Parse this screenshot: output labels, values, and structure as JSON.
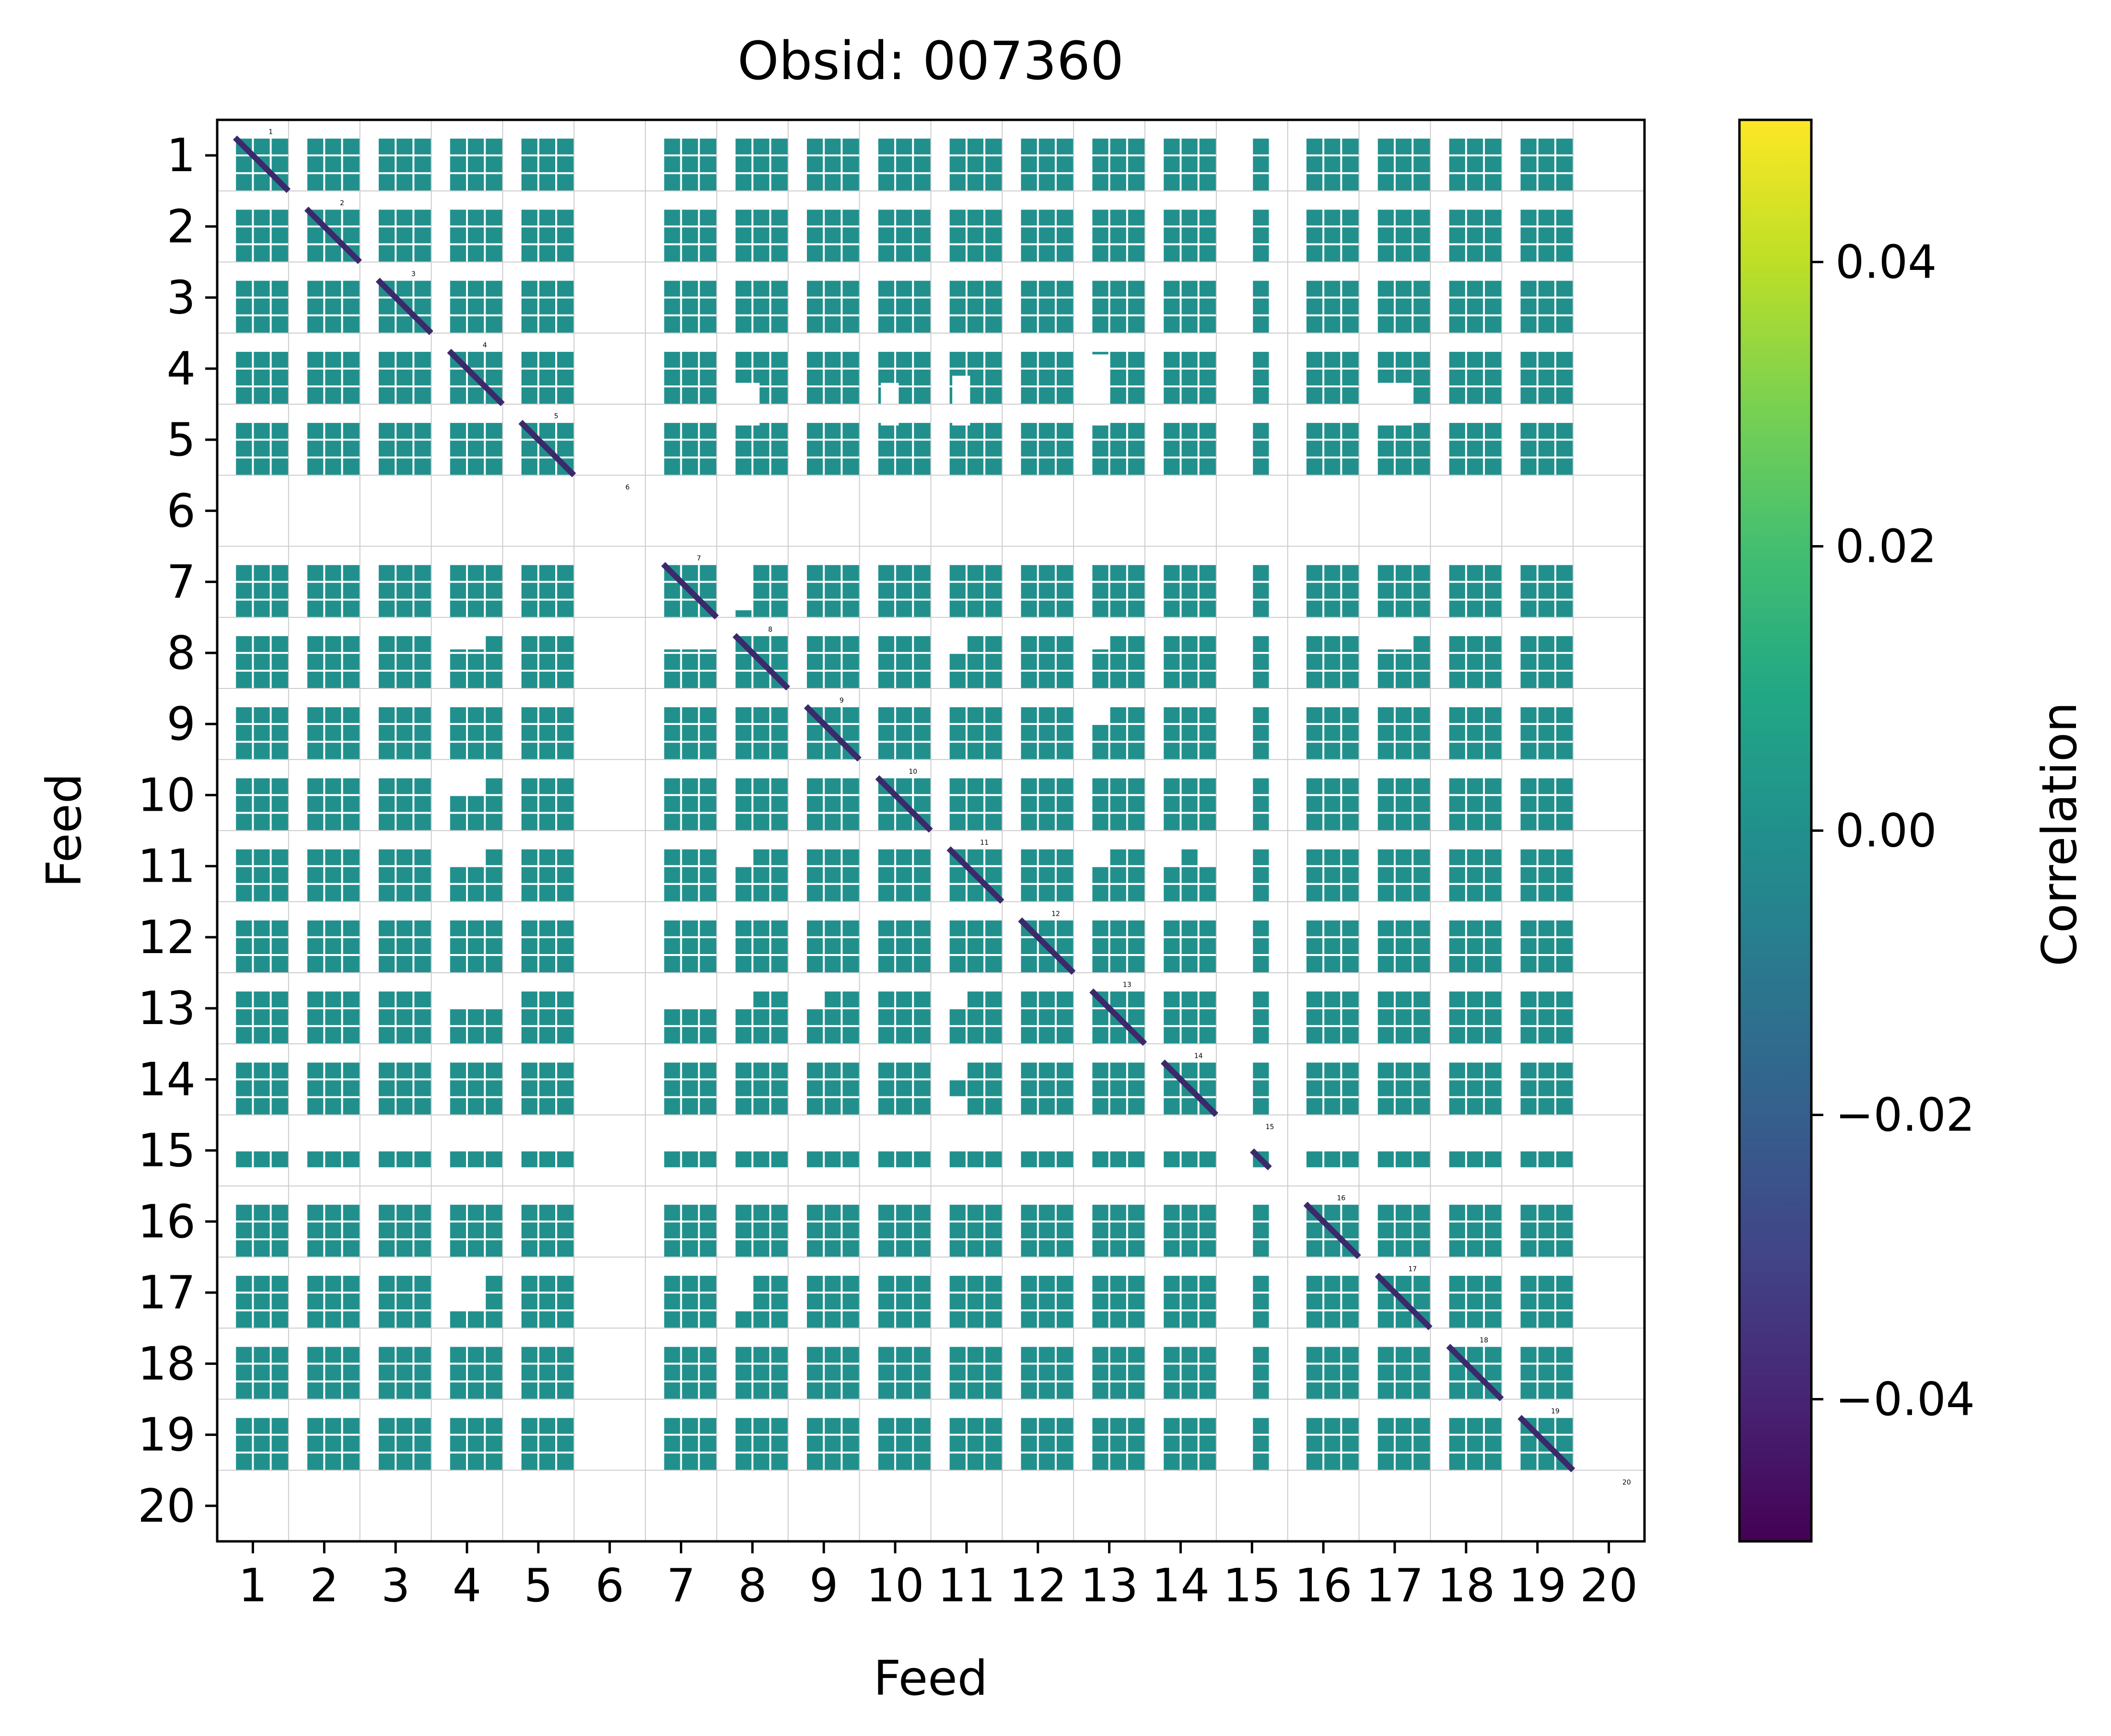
{
  "chart_data": {
    "type": "heatmap",
    "title": "Obsid: 007360",
    "xlabel": "Feed",
    "ylabel": "Feed",
    "x_tick_labels": [
      "1",
      "2",
      "3",
      "4",
      "5",
      "6",
      "7",
      "8",
      "9",
      "10",
      "11",
      "12",
      "13",
      "14",
      "15",
      "16",
      "17",
      "18",
      "19",
      "20"
    ],
    "y_tick_labels": [
      "1",
      "2",
      "3",
      "4",
      "5",
      "6",
      "7",
      "8",
      "9",
      "10",
      "11",
      "12",
      "13",
      "14",
      "15",
      "16",
      "17",
      "18",
      "19",
      "20"
    ],
    "feeds": 20,
    "subdivisions_per_feed": 4,
    "missing_feeds": [
      6,
      20
    ],
    "partial_feeds": [
      {
        "feed": 15,
        "present_fraction_range": [
          0.5,
          0.75
        ]
      }
    ],
    "masked_regions_feed_units": [
      {
        "rows": [
          4.2,
          4.8
        ],
        "cols": [
          7.6,
          8.1
        ]
      },
      {
        "rows": [
          4.2,
          4.8
        ],
        "cols": [
          9.8,
          10.05
        ]
      },
      {
        "rows": [
          4.1,
          4.8
        ],
        "cols": [
          10.8,
          11.05
        ]
      },
      {
        "rows": [
          3.8,
          4.8
        ],
        "cols": [
          12.75,
          13.0
        ]
      },
      {
        "rows": [
          4.2,
          4.8
        ],
        "cols": [
          16.75,
          17.25
        ]
      },
      {
        "rows": [
          6.5,
          7.4
        ],
        "cols": [
          7.75,
          8.0
        ]
      },
      {
        "rows": [
          7.5,
          7.95
        ],
        "cols": [
          3.75,
          4.25
        ]
      },
      {
        "rows": [
          7.7,
          7.95
        ],
        "cols": [
          6.75,
          7.5
        ]
      },
      {
        "rows": [
          7.5,
          7.95
        ],
        "cols": [
          12.5,
          13.0
        ]
      },
      {
        "rows": [
          7.7,
          7.95
        ],
        "cols": [
          16.75,
          17.25
        ]
      },
      {
        "rows": [
          7.75,
          8.0
        ],
        "cols": [
          10.75,
          11.0
        ]
      },
      {
        "rows": [
          8.75,
          9.0
        ],
        "cols": [
          12.75,
          13.0
        ]
      },
      {
        "rows": [
          9.75,
          10.0
        ],
        "cols": [
          3.75,
          4.25
        ]
      },
      {
        "rows": [
          10.75,
          11.0
        ],
        "cols": [
          3.75,
          4.25
        ]
      },
      {
        "rows": [
          10.75,
          11.0
        ],
        "cols": [
          7.75,
          8.0
        ]
      },
      {
        "rows": [
          10.75,
          11.0
        ],
        "cols": [
          12.5,
          13.0
        ]
      },
      {
        "rows": [
          10.75,
          11.0
        ],
        "cols": [
          13.75,
          14.0
        ]
      },
      {
        "rows": [
          10.75,
          11.0
        ],
        "cols": [
          14.25,
          14.5
        ]
      },
      {
        "rows": [
          12.75,
          13.0
        ],
        "cols": [
          3.75,
          4.5
        ]
      },
      {
        "rows": [
          12.75,
          13.0
        ],
        "cols": [
          6.5,
          7.5
        ]
      },
      {
        "rows": [
          12.5,
          13.0
        ],
        "cols": [
          7.5,
          8.0
        ]
      },
      {
        "rows": [
          12.75,
          13.0
        ],
        "cols": [
          8.75,
          9.0
        ]
      },
      {
        "rows": [
          12.5,
          13.0
        ],
        "cols": [
          10.75,
          11.0
        ]
      },
      {
        "rows": [
          13.75,
          14.0
        ],
        "cols": [
          10.75,
          11.0
        ]
      },
      {
        "rows": [
          14.25,
          14.5
        ],
        "cols": [
          10.75,
          11.0
        ]
      },
      {
        "rows": [
          16.75,
          17.25
        ],
        "cols": [
          3.75,
          4.25
        ]
      },
      {
        "rows": [
          16.75,
          17.25
        ],
        "cols": [
          7.75,
          8.0
        ]
      }
    ],
    "cell_value": 0.0,
    "diagonal_value": -0.05,
    "diagonal_feed_labels": [
      "1",
      "2",
      "3",
      "4",
      "5",
      "6",
      "7",
      "8",
      "9",
      "10",
      "11",
      "12",
      "13",
      "14",
      "15",
      "16",
      "17",
      "18",
      "19",
      "20"
    ],
    "colorbar": {
      "label": "Correlation",
      "vmin": -0.05,
      "vmax": 0.05,
      "colormap": "viridis",
      "ticks": [
        -0.04,
        -0.02,
        0.0,
        0.02,
        0.04
      ],
      "tick_labels": [
        "−0.04",
        "−0.02",
        "0.00",
        "0.02",
        "0.04"
      ]
    },
    "colors": {
      "cell": "#21908d",
      "grid": "#ffffff",
      "diagonal": "#3b2a6b",
      "feed_grid": "#cccccc"
    }
  }
}
